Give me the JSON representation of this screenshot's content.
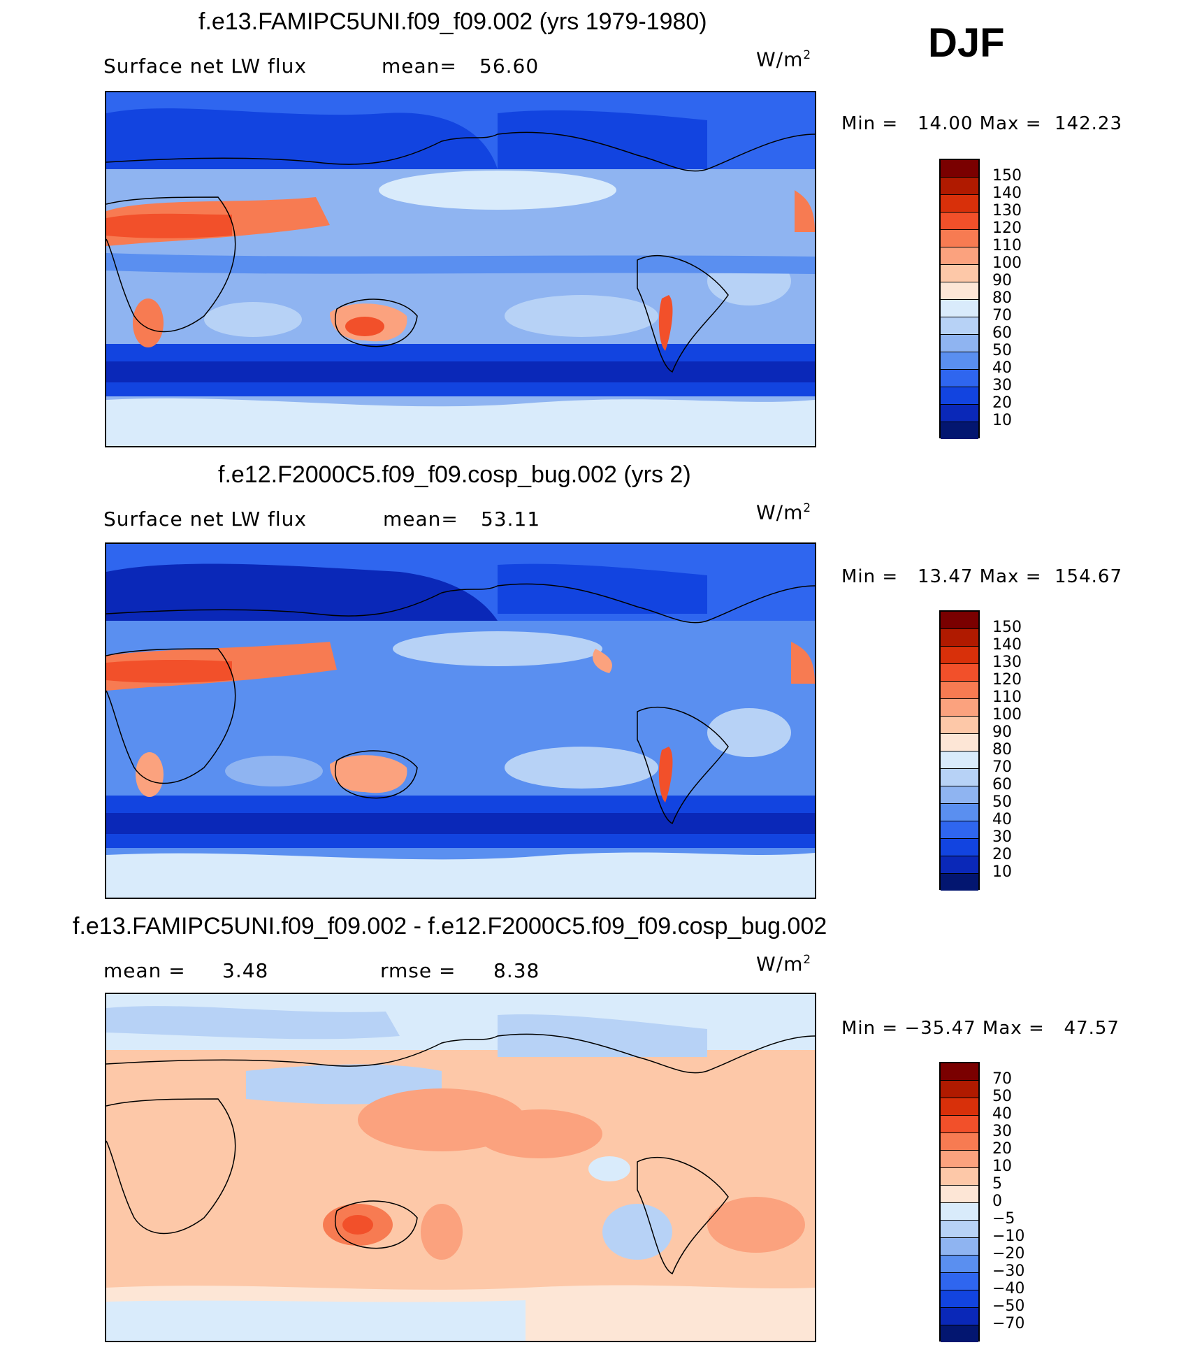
{
  "season": "DJF",
  "units_base": "W/m",
  "units_exp": "2",
  "charts": [
    {
      "title": "f.e13.FAMIPC5UNI.f09_f09.002 (yrs 1979-1980)",
      "left_label": "Surface net LW flux",
      "mid_label": "mean=",
      "mid_value": "56.60",
      "minmax": "Min =   14.00 Max =  142.23"
    },
    {
      "title": "f.e12.F2000C5.f09_f09.cosp_bug.002 (yrs 2)",
      "left_label": "Surface net LW flux",
      "mid_label": "mean=",
      "mid_value": "53.11",
      "minmax": "Min =   13.47 Max =  154.67"
    },
    {
      "title": "f.e13.FAMIPC5UNI.f09_f09.002 - f.e12.F2000C5.f09_f09.cosp_bug.002",
      "left_label": "mean =",
      "left_value": "3.48",
      "mid_label": "rmse =",
      "mid_value": "8.38",
      "minmax": "Min = −35.47 Max =   47.57"
    }
  ],
  "chart_data": [
    {
      "type": "heatmap",
      "title": "f.e13.FAMIPC5UNI.f09_f09.002 (yrs 1979-1980)",
      "variable": "Surface net LW flux",
      "units": "W/m2",
      "mean": 56.6,
      "min": 14.0,
      "max": 142.23,
      "colorbar_levels": [
        150,
        140,
        130,
        120,
        110,
        100,
        90,
        80,
        70,
        60,
        50,
        40,
        30,
        20,
        10
      ],
      "colorbar_colors": [
        "#7a0000",
        "#b01a00",
        "#d8300a",
        "#f2502a",
        "#f77b52",
        "#fba27e",
        "#fdc8a8",
        "#fde6d6",
        "#d9ebfb",
        "#b7d2f6",
        "#8fb4f1",
        "#5a8ff0",
        "#2f66ef",
        "#1244e0",
        "#0a28b8",
        "#031670"
      ]
    },
    {
      "type": "heatmap",
      "title": "f.e12.F2000C5.f09_f09.cosp_bug.002 (yrs 2)",
      "variable": "Surface net LW flux",
      "units": "W/m2",
      "mean": 53.11,
      "min": 13.47,
      "max": 154.67,
      "colorbar_levels": [
        150,
        140,
        130,
        120,
        110,
        100,
        90,
        80,
        70,
        60,
        50,
        40,
        30,
        20,
        10
      ],
      "colorbar_colors": [
        "#7a0000",
        "#b01a00",
        "#d8300a",
        "#f2502a",
        "#f77b52",
        "#fba27e",
        "#fdc8a8",
        "#fde6d6",
        "#d9ebfb",
        "#b7d2f6",
        "#8fb4f1",
        "#5a8ff0",
        "#2f66ef",
        "#1244e0",
        "#0a28b8",
        "#031670"
      ]
    },
    {
      "type": "heatmap",
      "title": "f.e13.FAMIPC5UNI.f09_f09.002 - f.e12.F2000C5.f09_f09.cosp_bug.002",
      "units": "W/m2",
      "mean": 3.48,
      "rmse": 8.38,
      "min": -35.47,
      "max": 47.57,
      "colorbar_levels": [
        70,
        50,
        40,
        30,
        20,
        10,
        5,
        0,
        -5,
        -10,
        -20,
        -30,
        -40,
        -50,
        -70
      ],
      "colorbar_labels": [
        "70",
        "50",
        "40",
        "30",
        "20",
        "10",
        "5",
        "0",
        "−5",
        "−10",
        "−20",
        "−30",
        "−40",
        "−50",
        "−70"
      ],
      "colorbar_colors": [
        "#7a0000",
        "#b01a00",
        "#d8300a",
        "#f2502a",
        "#f77b52",
        "#fba27e",
        "#fdc8a8",
        "#fde6d6",
        "#d9ebfb",
        "#b7d2f6",
        "#8fb4f1",
        "#5a8ff0",
        "#2f66ef",
        "#1244e0",
        "#0a28b8",
        "#031670"
      ]
    }
  ]
}
